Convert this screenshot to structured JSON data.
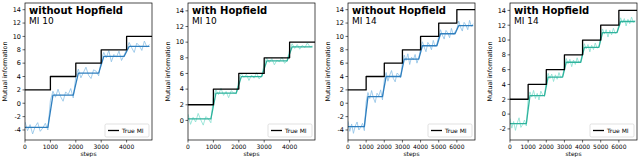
{
  "chart_data": [
    {
      "type": "line",
      "title": "without Hopfield",
      "subtitle": "MI 10",
      "x_label": "steps",
      "y_label": "Mutual information",
      "xlim": [
        0,
        5000
      ],
      "ylim": [
        -5.5,
        15
      ],
      "xticks": [
        0,
        1000,
        2000,
        3000,
        4000
      ],
      "yticks": [
        -4,
        -2,
        0,
        2,
        4,
        6,
        8,
        10,
        12,
        14
      ],
      "grid": false,
      "legend": "lower right",
      "series": [
        {
          "color": "#8cc0e6",
          "line_style": "solid",
          "x": [
            0,
            100,
            200,
            300,
            400,
            500,
            600,
            700,
            800,
            900,
            1000,
            1100,
            1200,
            1300,
            1400,
            1500,
            1600,
            1700,
            1800,
            1900,
            2000,
            2100,
            2200,
            2300,
            2400,
            2500,
            2600,
            2700,
            2800,
            2900,
            3000,
            3100,
            3200,
            3300,
            3400,
            3500,
            3600,
            3700,
            3800,
            3900,
            4000,
            4100,
            4200,
            4300,
            4400,
            4500,
            4600,
            4700,
            4800,
            4900
          ],
          "values": [
            -2.8,
            -4.1,
            -3.2,
            -4.6,
            -3.5,
            -2.9,
            -4.2,
            -3.7,
            -3.0,
            -4.0,
            0.4,
            1.8,
            0.9,
            2.1,
            1.0,
            0.3,
            1.7,
            1.3,
            2.2,
            0.8,
            4.0,
            5.1,
            3.8,
            4.6,
            5.4,
            4.2,
            3.7,
            5.0,
            4.8,
            4.1,
            6.5,
            7.6,
            6.8,
            7.9,
            6.2,
            7.3,
            6.9,
            7.8,
            6.4,
            7.2,
            8.0,
            9.1,
            8.3,
            7.6,
            9.0,
            8.6,
            7.9,
            9.3,
            8.4,
            8.8
          ]
        },
        {
          "color": "#2f7fbf",
          "line_style": "solid",
          "x": [
            0,
            900,
            1100,
            1900,
            2100,
            2900,
            3100,
            3900,
            4100,
            4900
          ],
          "values": [
            -3.6,
            -3.6,
            1.2,
            1.2,
            4.5,
            4.5,
            7,
            7,
            8.5,
            8.5
          ]
        },
        {
          "name": "True MI",
          "color": "#000000",
          "line_style": "solid",
          "x": [
            0,
            1000,
            1000,
            2000,
            2000,
            3000,
            3000,
            4000,
            4000,
            5000
          ],
          "values": [
            2,
            2,
            4,
            4,
            6,
            6,
            8,
            8,
            10,
            10
          ]
        }
      ]
    },
    {
      "type": "line",
      "title": "with Hopfield",
      "subtitle": "MI 10",
      "x_label": "steps",
      "y_label": "Mutual information",
      "xlim": [
        0,
        5000
      ],
      "ylim": [
        -2.5,
        15
      ],
      "xticks": [
        0,
        1000,
        2000,
        3000,
        4000
      ],
      "yticks": [
        0,
        2,
        4,
        6,
        8,
        10,
        12,
        14
      ],
      "grid": false,
      "legend": "lower right",
      "series": [
        {
          "color": "#86e0d0",
          "line_style": "solid",
          "x": [
            0,
            100,
            200,
            300,
            400,
            500,
            600,
            700,
            800,
            900,
            1000,
            1100,
            1200,
            1300,
            1400,
            1500,
            1600,
            1700,
            1800,
            1900,
            2000,
            2100,
            2200,
            2300,
            2400,
            2500,
            2600,
            2700,
            2800,
            2900,
            3000,
            3100,
            3200,
            3300,
            3400,
            3500,
            3600,
            3700,
            3800,
            3900,
            4000,
            4100,
            4200,
            4300,
            4400,
            4500,
            4600,
            4700,
            4800,
            4900
          ],
          "values": [
            0.8,
            -0.5,
            0.4,
            -0.2,
            0.9,
            0.1,
            -0.6,
            0.5,
            0.2,
            -0.3,
            3.0,
            3.9,
            3.3,
            4.1,
            3.2,
            3.7,
            2.9,
            3.8,
            3.5,
            3.4,
            5.2,
            6.0,
            5.5,
            5.9,
            5.1,
            5.8,
            5.4,
            6.1,
            5.3,
            5.7,
            7.2,
            8.0,
            7.4,
            7.9,
            7.1,
            7.7,
            7.5,
            8.1,
            7.3,
            7.6,
            9.0,
            9.8,
            9.2,
            9.7,
            9.1,
            9.6,
            9.3,
            9.9,
            9.4,
            9.5
          ]
        },
        {
          "color": "#2fb39d",
          "line_style": "solid",
          "x": [
            0,
            900,
            1100,
            1900,
            2100,
            2900,
            3100,
            3900,
            4100,
            4900
          ],
          "values": [
            0.2,
            0.2,
            3.5,
            3.5,
            5.6,
            5.6,
            7.6,
            7.6,
            9.4,
            9.4
          ]
        },
        {
          "name": "True MI",
          "color": "#000000",
          "line_style": "solid",
          "x": [
            0,
            1000,
            1000,
            2000,
            2000,
            3000,
            3000,
            4000,
            4000,
            5000
          ],
          "values": [
            2,
            2,
            4,
            4,
            6,
            6,
            8,
            8,
            10,
            10
          ]
        }
      ]
    },
    {
      "type": "line",
      "title": "without Hopfield",
      "subtitle": "MI 14",
      "x_label": "steps",
      "y_label": "Mutual information",
      "xlim": [
        0,
        7000
      ],
      "ylim": [
        -5.5,
        15
      ],
      "xticks": [
        0,
        1000,
        2000,
        3000,
        4000,
        5000,
        6000
      ],
      "yticks": [
        -4,
        -2,
        0,
        2,
        4,
        6,
        8,
        10,
        12,
        14
      ],
      "grid": false,
      "legend": "lower right",
      "series": [
        {
          "color": "#8cc0e6",
          "line_style": "solid",
          "x": [
            0,
            100,
            200,
            300,
            400,
            500,
            600,
            700,
            800,
            900,
            1000,
            1100,
            1200,
            1300,
            1400,
            1500,
            1600,
            1700,
            1800,
            1900,
            2000,
            2100,
            2200,
            2300,
            2400,
            2500,
            2600,
            2700,
            2800,
            2900,
            3000,
            3100,
            3200,
            3300,
            3400,
            3500,
            3600,
            3700,
            3800,
            3900,
            4000,
            4100,
            4200,
            4300,
            4400,
            4500,
            4600,
            4700,
            4800,
            4900,
            5000,
            5100,
            5200,
            5300,
            5400,
            5500,
            5600,
            5700,
            5800,
            5900,
            6000,
            6100,
            6200,
            6300,
            6400,
            6500,
            6600,
            6700,
            6800,
            6900
          ],
          "values": [
            -2.7,
            -4.2,
            -3.1,
            -4.5,
            -3.4,
            -2.8,
            -4.0,
            -3.6,
            -3.0,
            -4.1,
            0.2,
            1.6,
            0.7,
            1.9,
            0.8,
            0.1,
            1.5,
            1.1,
            2.0,
            0.5,
            3.5,
            4.6,
            3.3,
            4.2,
            4.9,
            3.7,
            3.2,
            4.5,
            4.3,
            3.8,
            6.1,
            7.2,
            6.4,
            7.4,
            5.8,
            6.9,
            6.5,
            7.3,
            6.0,
            6.8,
            8.1,
            9.2,
            8.4,
            7.7,
            9.1,
            8.7,
            8.0,
            9.4,
            8.5,
            8.9,
            9.9,
            11.0,
            10.2,
            9.6,
            10.9,
            10.5,
            9.8,
            11.2,
            10.3,
            10.7,
            11.1,
            12.3,
            11.4,
            10.8,
            12.1,
            11.7,
            11.0,
            12.4,
            11.5,
            11.9
          ]
        },
        {
          "color": "#2f7fbf",
          "line_style": "solid",
          "x": [
            0,
            900,
            1100,
            1900,
            2100,
            2900,
            3100,
            3900,
            4100,
            4900,
            5100,
            5900,
            6100,
            6900
          ],
          "values": [
            -3.5,
            -3.5,
            1,
            1,
            4,
            4,
            6.6,
            6.6,
            8.6,
            8.6,
            10.4,
            10.4,
            11.6,
            11.6
          ]
        },
        {
          "name": "True MI",
          "color": "#000000",
          "line_style": "solid",
          "x": [
            0,
            1000,
            1000,
            2000,
            2000,
            3000,
            3000,
            4000,
            4000,
            5000,
            5000,
            6000,
            6000,
            7000
          ],
          "values": [
            2,
            2,
            4,
            4,
            6,
            6,
            8,
            8,
            10,
            10,
            12,
            12,
            14,
            14
          ]
        }
      ]
    },
    {
      "type": "line",
      "title": "with Hopfield",
      "subtitle": "MI 14",
      "x_label": "steps",
      "y_label": "Mutual information",
      "xlim": [
        0,
        7000
      ],
      "ylim": [
        -3.5,
        15
      ],
      "xticks": [
        0,
        1000,
        2000,
        3000,
        4000,
        5000,
        6000
      ],
      "yticks": [
        -2,
        0,
        2,
        4,
        6,
        8,
        10,
        12,
        14
      ],
      "grid": false,
      "legend": "lower right",
      "series": [
        {
          "color": "#86e0d0",
          "line_style": "solid",
          "x": [
            0,
            100,
            200,
            300,
            400,
            500,
            600,
            700,
            800,
            900,
            1000,
            1100,
            1200,
            1300,
            1400,
            1500,
            1600,
            1700,
            1800,
            1900,
            2000,
            2100,
            2200,
            2300,
            2400,
            2500,
            2600,
            2700,
            2800,
            2900,
            3000,
            3100,
            3200,
            3300,
            3400,
            3500,
            3600,
            3700,
            3800,
            3900,
            4000,
            4100,
            4200,
            4300,
            4400,
            4500,
            4600,
            4700,
            4800,
            4900,
            5000,
            5100,
            5200,
            5300,
            5400,
            5500,
            5600,
            5700,
            5800,
            5900,
            6000,
            6100,
            6200,
            6300,
            6400,
            6500,
            6600,
            6700,
            6800,
            6900
          ],
          "values": [
            -0.6,
            -1.9,
            -1.0,
            -2.2,
            -1.2,
            -0.5,
            -1.8,
            -1.4,
            -0.8,
            -1.6,
            2.0,
            3.0,
            2.3,
            3.2,
            2.1,
            2.8,
            1.9,
            3.1,
            2.6,
            2.4,
            4.5,
            5.5,
            4.8,
            5.4,
            4.4,
            5.3,
            4.7,
            5.6,
            4.9,
            5.1,
            6.5,
            7.5,
            6.8,
            7.4,
            6.4,
            7.3,
            6.7,
            7.6,
            6.9,
            7.1,
            8.5,
            9.5,
            8.8,
            9.4,
            8.4,
            9.3,
            8.7,
            9.6,
            8.9,
            9.1,
            10.5,
            11.5,
            10.8,
            11.4,
            10.4,
            11.3,
            10.7,
            11.6,
            10.9,
            11.1,
            12.0,
            13.0,
            12.3,
            12.9,
            11.9,
            12.8,
            12.2,
            13.1,
            12.4,
            12.6
          ]
        },
        {
          "color": "#2fb39d",
          "line_style": "solid",
          "x": [
            0,
            900,
            1100,
            1900,
            2100,
            2900,
            3100,
            3900,
            4100,
            4900,
            5100,
            5900,
            6100,
            6900
          ],
          "values": [
            -1.3,
            -1.3,
            2.5,
            2.5,
            5,
            5,
            7,
            7,
            9,
            9,
            11,
            11,
            12.5,
            12.5
          ]
        },
        {
          "name": "True MI",
          "color": "#000000",
          "line_style": "solid",
          "x": [
            0,
            1000,
            1000,
            2000,
            2000,
            3000,
            3000,
            4000,
            4000,
            5000,
            5000,
            6000,
            6000,
            7000
          ],
          "values": [
            2,
            2,
            4,
            4,
            6,
            6,
            8,
            8,
            10,
            10,
            12,
            12,
            14,
            14
          ]
        }
      ]
    }
  ]
}
